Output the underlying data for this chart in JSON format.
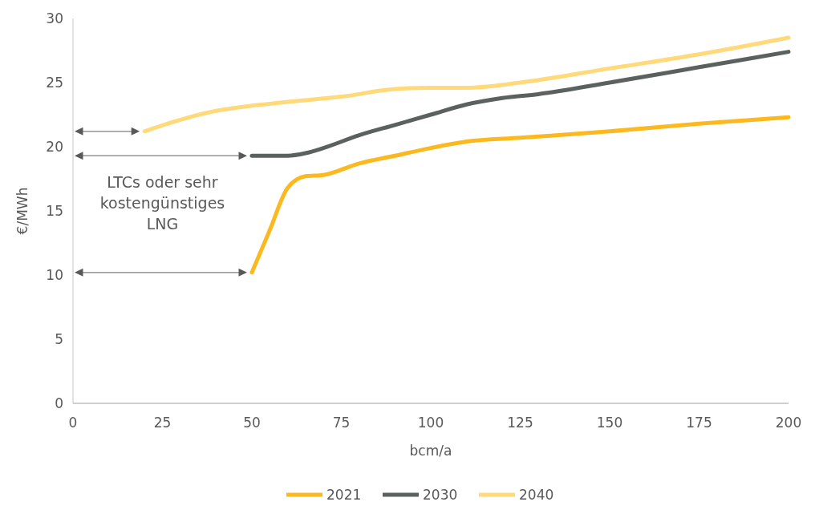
{
  "chart_data": {
    "type": "line",
    "xlabel": "bcm/a",
    "ylabel": "€/MWh",
    "xlim": [
      0,
      200
    ],
    "xticks": [
      0,
      25,
      50,
      75,
      100,
      125,
      150,
      175,
      200
    ],
    "ylim": [
      0,
      30
    ],
    "yticks": [
      0,
      5,
      10,
      15,
      20,
      25,
      30
    ],
    "grid": false,
    "legend": "bottom",
    "marker": "none",
    "line_style": "solid",
    "annotations": [
      "LTCs oder sehr kostengünstiges LNG"
    ],
    "series": [
      {
        "name": "2021",
        "color": "#fbb91f",
        "x": [
          50,
          55,
          60,
          65,
          70,
          80,
          90,
          100,
          110,
          125,
          150,
          175,
          200
        ],
        "values": [
          10.2,
          13.5,
          16.8,
          17.7,
          17.8,
          18.7,
          19.3,
          19.9,
          20.4,
          20.7,
          21.2,
          21.8,
          22.3
        ]
      },
      {
        "name": "2030",
        "color": "#5a615f",
        "x": [
          50,
          60,
          65,
          70,
          80,
          90,
          100,
          110,
          120,
          130,
          150,
          175,
          200
        ],
        "values": [
          19.3,
          19.3,
          19.5,
          19.9,
          20.9,
          21.7,
          22.5,
          23.3,
          23.8,
          24.1,
          25.0,
          26.2,
          27.4
        ]
      },
      {
        "name": "2040",
        "color": "#ffd97a",
        "x": [
          20,
          30,
          40,
          50,
          60,
          75,
          90,
          100,
          110,
          125,
          150,
          175,
          200
        ],
        "values": [
          21.2,
          22.1,
          22.8,
          23.2,
          23.5,
          23.9,
          24.5,
          24.6,
          24.6,
          25.0,
          26.1,
          27.2,
          28.5
        ]
      }
    ]
  }
}
